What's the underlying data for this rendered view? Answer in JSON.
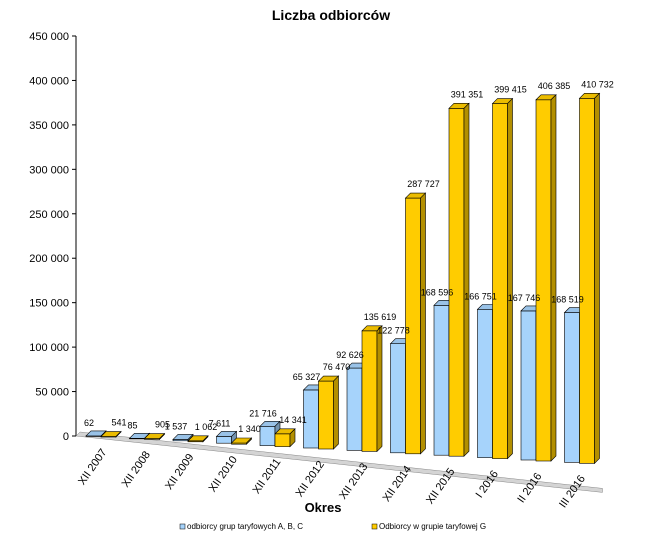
{
  "chart_data": {
    "type": "bar",
    "title": "Liczba odbiorców",
    "xlabel": "Okres",
    "ylabel": "",
    "ylim": [
      0,
      450000
    ],
    "y_ticks": [
      "0",
      "50 000",
      "100 000",
      "150 000",
      "200 000",
      "250 000",
      "300 000",
      "350 000",
      "400 000",
      "450 000"
    ],
    "categories": [
      "XII 2007",
      "XII 2008",
      "XII 2009",
      "XII 2010",
      "XII 2011",
      "XII 2012",
      "XII 2013",
      "XII 2014",
      "XII 2015",
      "I 2016",
      "II 2016",
      "III 2016"
    ],
    "legend_position": "bottom",
    "grid": false,
    "style": "3d-clustered",
    "series": [
      {
        "name": "odbiorcy grup taryfowych A, B, C",
        "color": "#a6d3fb",
        "values": [
          62,
          85,
          1537,
          7611,
          21716,
          65327,
          92626,
          122778,
          168596,
          166751,
          167746,
          168519
        ],
        "labels": [
          "62",
          "85",
          "1 537",
          "7 611",
          "21 716",
          "65 327",
          "92 626",
          "122 778",
          "168 596",
          "166 751",
          "167 746",
          "168 519"
        ]
      },
      {
        "name": "Odbiorcy w grupie taryfowej G",
        "color": "#ffcc00",
        "values": [
          541,
          905,
          1062,
          1340,
          14341,
          76470,
          135619,
          287727,
          391351,
          399415,
          406385,
          410732
        ],
        "labels": [
          "541",
          "905",
          "1 062",
          "1 340",
          "14 341",
          "76 470",
          "135 619",
          "287 727",
          "391 351",
          "399 415",
          "406 385",
          "410 732"
        ]
      }
    ]
  }
}
